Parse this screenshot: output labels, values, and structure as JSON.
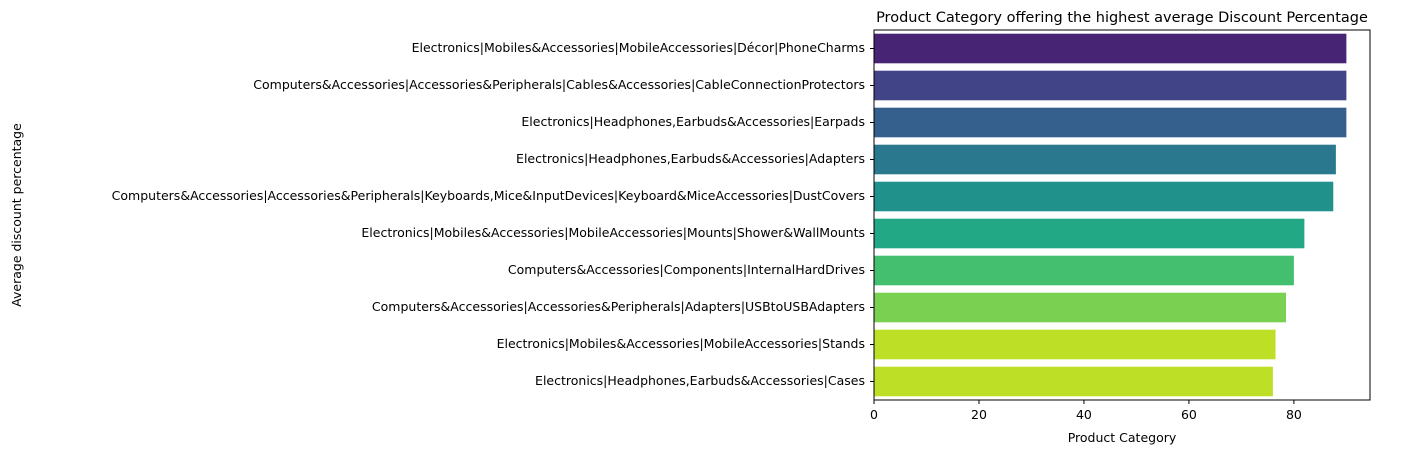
{
  "chart_data": {
    "type": "bar",
    "orientation": "horizontal",
    "title": "Product Category offering the highest average Discount Percentage",
    "xlabel": "Product Category",
    "ylabel": "Average discount percentage",
    "xlim": [
      0,
      94.5
    ],
    "xticks": [
      0,
      20,
      40,
      60,
      80
    ],
    "grid": false,
    "palette": "viridis",
    "categories": [
      "Electronics|Mobiles&Accessories|MobileAccessories|Décor|PhoneCharms",
      "Computers&Accessories|Accessories&Peripherals|Cables&Accessories|CableConnectionProtectors",
      "Electronics|Headphones,Earbuds&Accessories|Earpads",
      "Electronics|Headphones,Earbuds&Accessories|Adapters",
      "Computers&Accessories|Accessories&Peripherals|Keyboards,Mice&InputDevices|Keyboard&MiceAccessories|DustCovers",
      "Electronics|Mobiles&Accessories|MobileAccessories|Mounts|Shower&WallMounts",
      "Computers&Accessories|Components|InternalHardDrives",
      "Computers&Accessories|Accessories&Peripherals|Adapters|USBtoUSBAdapters",
      "Electronics|Mobiles&Accessories|MobileAccessories|Stands",
      "Electronics|Headphones,Earbuds&Accessories|Cases"
    ],
    "values": [
      90,
      90,
      90,
      88,
      87.5,
      82,
      80,
      78.5,
      76.5,
      76
    ],
    "colors": [
      "#482475",
      "#414487",
      "#355f8d",
      "#2a788e",
      "#21918c",
      "#22a884",
      "#44bf70",
      "#7ad151",
      "#bddf26",
      "#bddf26"
    ]
  }
}
